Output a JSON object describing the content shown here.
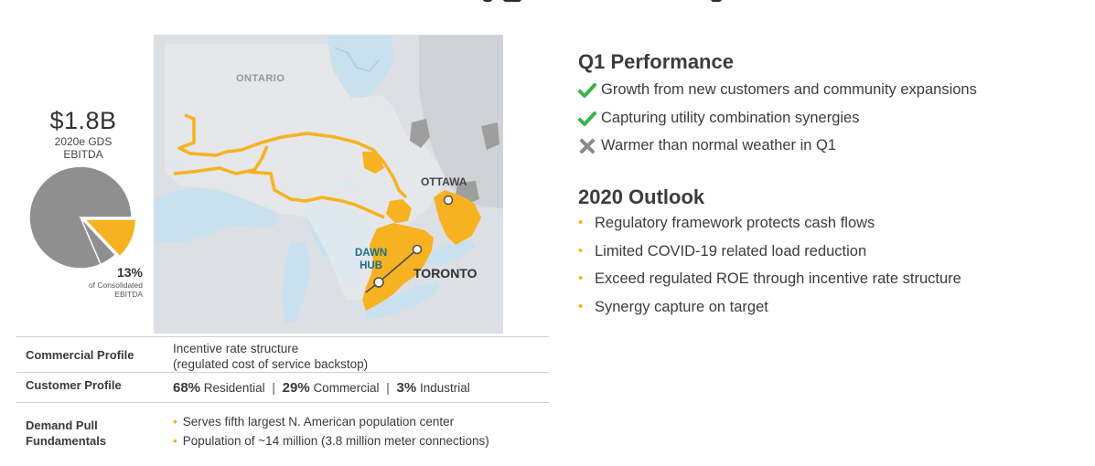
{
  "kpi": {
    "value": "$1.8B",
    "caption_line1": "2020e GDS",
    "caption_line2": "EBITDA",
    "share_pct": "13%",
    "share_note_line1": "of Consolidated",
    "share_note_line2": "EBITDA",
    "share_fraction": 0.13,
    "colors": {
      "share": "#f6b221",
      "rest": "#8f8f8f",
      "slice_border": "#ffffff"
    }
  },
  "map": {
    "labels": {
      "region": "ONTARIO",
      "city_1": "OTTAWA",
      "hub_line1": "DAWN",
      "hub_line2": "HUB",
      "city_2": "TORONTO"
    },
    "colors": {
      "land": "#dcdfe3",
      "water": "#c9e1ef",
      "territory": "#f6b221",
      "urban": "#9e9e9e"
    }
  },
  "profile": {
    "commercial": {
      "label": "Commercial Profile",
      "line1": "Incentive rate structure",
      "line2": "(regulated cost of service backstop)"
    },
    "customer": {
      "label": "Customer Profile",
      "residential_pct": "68%",
      "residential_label": "Residential",
      "commercial_pct": "29%",
      "commercial_label": "Commercial",
      "industrial_pct": "3%",
      "industrial_label": "Industrial",
      "separator": "|"
    },
    "demand": {
      "label_line1": "Demand Pull",
      "label_line2": "Fundamentals",
      "items": [
        "Serves fifth largest N. American population center",
        "Population of ~14 million (3.8 million meter connections)"
      ]
    }
  },
  "q1": {
    "title": "Q1 Performance",
    "items": [
      {
        "text": "Growth from new customers and community expansions",
        "icon": "check-icon"
      },
      {
        "text": "Capturing utility combination synergies",
        "icon": "check-icon"
      },
      {
        "text": "Warmer than normal weather in Q1",
        "icon": "cross-icon"
      }
    ],
    "colors": {
      "check": "#3cb44a",
      "cross": "#8a8a8a"
    }
  },
  "outlook": {
    "title": "2020 Outlook",
    "items": [
      "Regulatory framework protects cash flows",
      "Limited COVID-19 related load reduction",
      "Exceed regulated ROE through incentive rate structure",
      "Synergy capture on target"
    ],
    "bullet_color": "#f6b221"
  }
}
